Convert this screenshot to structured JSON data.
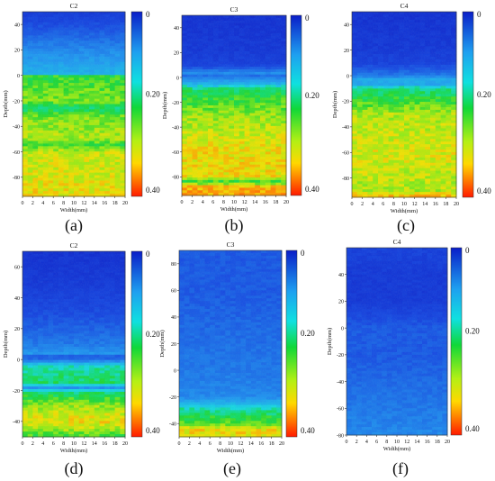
{
  "colorbar": {
    "ticks": [
      "0",
      "0.20",
      "0.40"
    ],
    "range": [
      0,
      0.4
    ]
  },
  "chart_data": [
    {
      "type": "heatmap",
      "label": "(a)",
      "title": "C2",
      "xlabel": "Width(mm)",
      "ylabel": "Depth(mm)",
      "xlim": [
        0,
        20
      ],
      "ylim": [
        -95,
        50
      ],
      "xticks": [
        "0",
        "2",
        "4",
        "6",
        "8",
        "10",
        "12",
        "14",
        "16",
        "18",
        "20"
      ],
      "yticks": [
        "40",
        "20",
        "0",
        "-20",
        "-40",
        "-60",
        "-80"
      ],
      "depth_profile": [
        [
          50,
          0.03
        ],
        [
          35,
          0.06
        ],
        [
          20,
          0.09
        ],
        [
          8,
          0.11
        ],
        [
          1,
          0.12
        ],
        [
          0,
          0.22
        ],
        [
          -20,
          0.25
        ],
        [
          -26,
          0.19
        ],
        [
          -32,
          0.25
        ],
        [
          -50,
          0.27
        ],
        [
          -54,
          0.22
        ],
        [
          -60,
          0.28
        ],
        [
          -80,
          0.29
        ],
        [
          -95,
          0.3
        ]
      ]
    },
    {
      "type": "heatmap",
      "label": "(b)",
      "title": "C3",
      "xlabel": "Width(mm)",
      "ylabel": "Depth(mm)",
      "xlim": [
        0,
        20
      ],
      "ylim": [
        -95,
        50
      ],
      "xticks": [
        "0",
        "2",
        "4",
        "6",
        "8",
        "10",
        "12",
        "14",
        "16",
        "18",
        "20"
      ],
      "yticks": [
        "40",
        "20",
        "0",
        "-20",
        "-40",
        "-60",
        "-80"
      ],
      "depth_profile": [
        [
          50,
          0.02
        ],
        [
          20,
          0.03
        ],
        [
          10,
          0.04
        ],
        [
          6,
          0.07
        ],
        [
          4,
          0.1
        ],
        [
          2,
          0.07
        ],
        [
          -5,
          0.12
        ],
        [
          -10,
          0.2
        ],
        [
          -30,
          0.26
        ],
        [
          -60,
          0.3
        ],
        [
          -80,
          0.3
        ],
        [
          -84,
          0.22
        ],
        [
          -88,
          0.32
        ],
        [
          -95,
          0.33
        ]
      ]
    },
    {
      "type": "heatmap",
      "label": "(c)",
      "title": "C4",
      "xlabel": "Width(mm)",
      "ylabel": "Depth(mm)",
      "xlim": [
        0,
        20
      ],
      "ylim": [
        -95,
        50
      ],
      "xticks": [
        "0",
        "2",
        "4",
        "6",
        "8",
        "10",
        "12",
        "14",
        "16",
        "18",
        "20"
      ],
      "yticks": [
        "40",
        "20",
        "0",
        "-20",
        "-40",
        "-60",
        "-80"
      ],
      "depth_profile": [
        [
          50,
          0.02
        ],
        [
          20,
          0.03
        ],
        [
          10,
          0.04
        ],
        [
          0,
          0.08
        ],
        [
          -4,
          0.13
        ],
        [
          -6,
          0.09
        ],
        [
          -10,
          0.18
        ],
        [
          -30,
          0.27
        ],
        [
          -60,
          0.29
        ],
        [
          -90,
          0.27
        ],
        [
          -95,
          0.33
        ]
      ]
    },
    {
      "type": "heatmap",
      "label": "(d)",
      "title": "C2",
      "xlabel": "Width(mm)",
      "ylabel": "Depth(mm)",
      "xlim": [
        0,
        20
      ],
      "ylim": [
        -50,
        70
      ],
      "xticks": [
        "0",
        "2",
        "4",
        "6",
        "8",
        "10",
        "12",
        "14",
        "16",
        "18",
        "20"
      ],
      "yticks": [
        "60",
        "40",
        "20",
        "0",
        "-20",
        "-40"
      ],
      "depth_profile": [
        [
          70,
          0.02
        ],
        [
          50,
          0.03
        ],
        [
          30,
          0.05
        ],
        [
          10,
          0.08
        ],
        [
          4,
          0.1
        ],
        [
          2,
          0.06
        ],
        [
          0,
          0.07
        ],
        [
          -5,
          0.17
        ],
        [
          -15,
          0.2
        ],
        [
          -18,
          0.09
        ],
        [
          -22,
          0.2
        ],
        [
          -30,
          0.26
        ],
        [
          -40,
          0.3
        ],
        [
          -45,
          0.27
        ],
        [
          -50,
          0.22
        ]
      ]
    },
    {
      "type": "heatmap",
      "label": "(e)",
      "title": "C3",
      "xlabel": "Width(mm)",
      "ylabel": "Depth(mm)",
      "xlim": [
        0,
        20
      ],
      "ylim": [
        -50,
        90
      ],
      "xticks": [
        "0",
        "2",
        "4",
        "6",
        "8",
        "10",
        "12",
        "14",
        "16",
        "18",
        "20"
      ],
      "yticks": [
        "80",
        "60",
        "40",
        "20",
        "0",
        "-20",
        "-40"
      ],
      "depth_profile": [
        [
          90,
          0.06
        ],
        [
          60,
          0.06
        ],
        [
          30,
          0.07
        ],
        [
          0,
          0.08
        ],
        [
          -20,
          0.09
        ],
        [
          -26,
          0.13
        ],
        [
          -30,
          0.18
        ],
        [
          -40,
          0.24
        ],
        [
          -45,
          0.3
        ],
        [
          -50,
          0.3
        ]
      ]
    },
    {
      "type": "heatmap",
      "label": "(f)",
      "title": "C4",
      "xlabel": "Width(mm)",
      "ylabel": "Depth(mm)",
      "xlim": [
        0,
        20
      ],
      "ylim": [
        -80,
        60
      ],
      "xticks": [
        "0",
        "2",
        "4",
        "6",
        "8",
        "10",
        "12",
        "14",
        "16",
        "18",
        "20"
      ],
      "yticks": [
        "40",
        "20",
        "0",
        "-20",
        "-40",
        "-60",
        "-80"
      ],
      "depth_profile": [
        [
          60,
          0.04
        ],
        [
          40,
          0.03
        ],
        [
          20,
          0.03
        ],
        [
          0,
          0.06
        ],
        [
          -20,
          0.06
        ],
        [
          -40,
          0.07
        ],
        [
          -60,
          0.08
        ],
        [
          -80,
          0.09
        ]
      ]
    }
  ],
  "colors": {
    "low": "#0a2fd8",
    "mid": "#10d838",
    "high": "#ff1a00",
    "axis": "#111111"
  }
}
